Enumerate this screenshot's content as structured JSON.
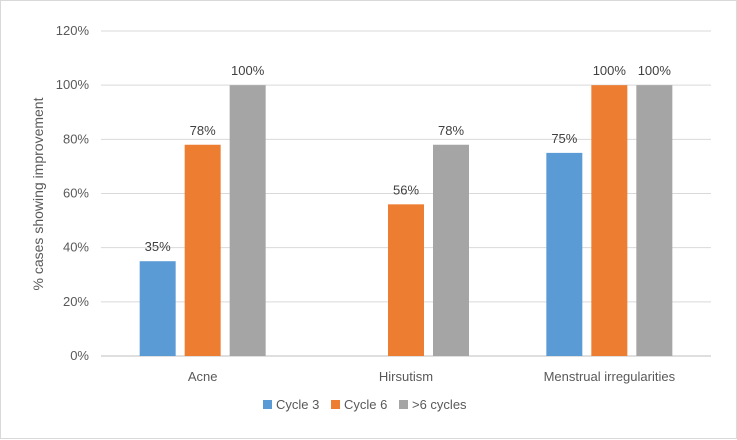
{
  "chart_data": {
    "type": "bar",
    "title": "",
    "xlabel": "",
    "ylabel": "% cases showing improvement",
    "ylim": [
      0,
      120
    ],
    "yticks": [
      0,
      20,
      40,
      60,
      80,
      100,
      120
    ],
    "ytick_format": "%",
    "grid": true,
    "legend_position": "bottom",
    "categories": [
      "Acne",
      "Hirsutism",
      "Menstrual irregularities"
    ],
    "series": [
      {
        "name": "Cycle 3",
        "color": "#5b9bd5",
        "values": [
          35,
          null,
          75
        ],
        "labels": [
          "35%",
          "",
          "75%"
        ]
      },
      {
        "name": "Cycle 6",
        "color": "#ed7d31",
        "values": [
          78,
          56,
          100
        ],
        "labels": [
          "78%",
          "56%",
          "100%"
        ]
      },
      {
        "name": ">6 cycles",
        "color": "#a5a5a5",
        "values": [
          100,
          78,
          100
        ],
        "labels": [
          "100%",
          "78%",
          "100%"
        ]
      }
    ]
  }
}
